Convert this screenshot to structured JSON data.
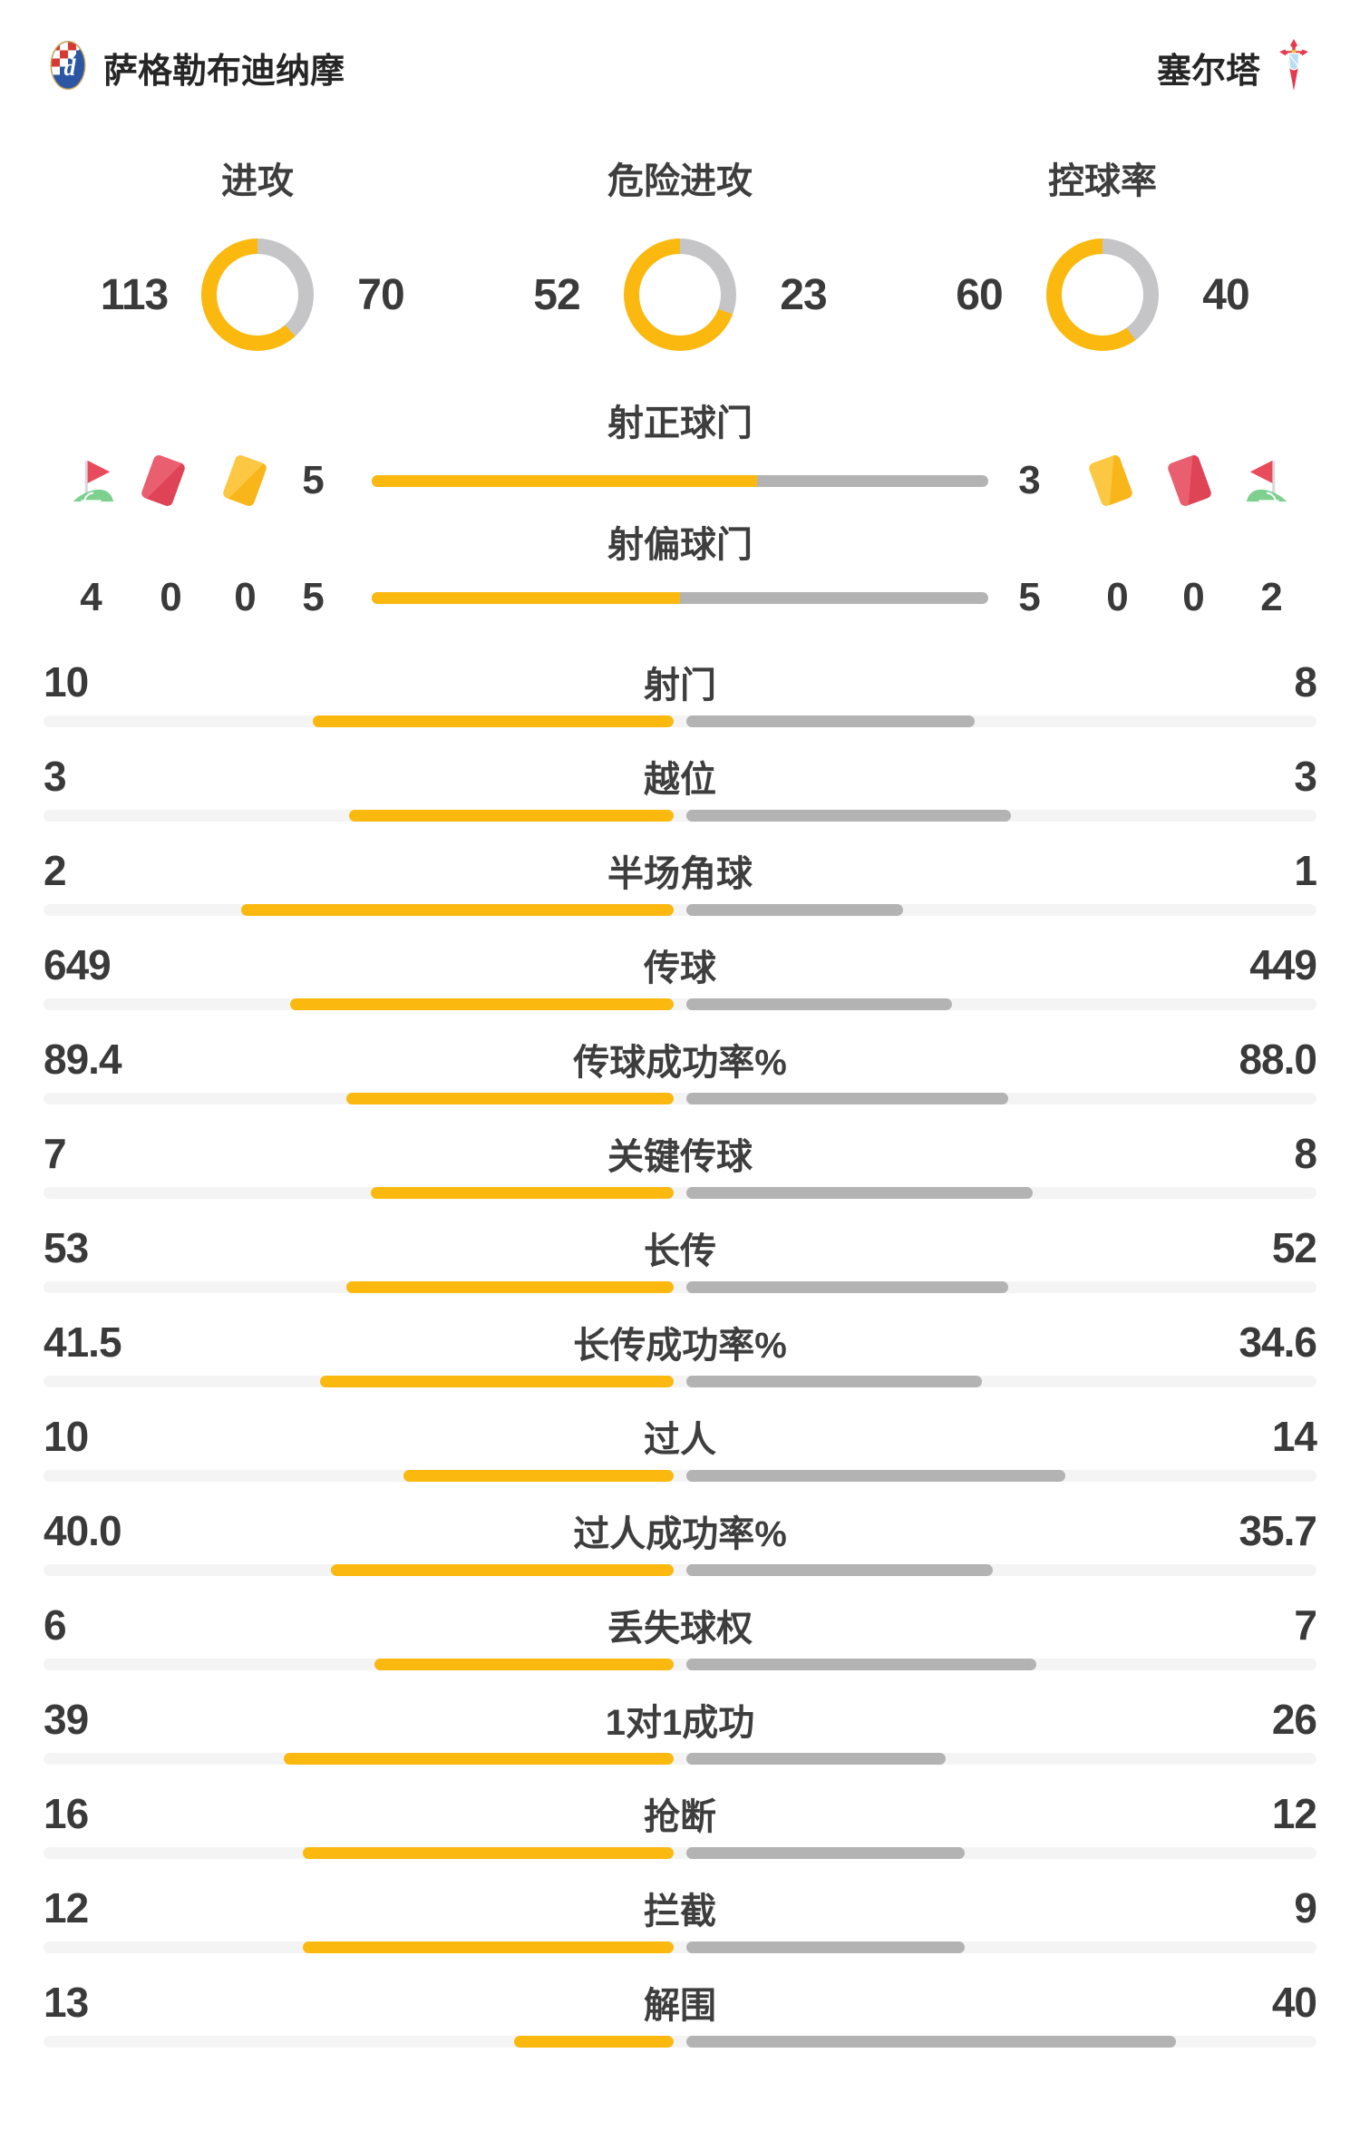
{
  "header": {
    "home_team": "萨格勒布迪纳摩",
    "away_team": "塞尔塔"
  },
  "chart_data": {
    "type": "bar",
    "subtype": "football-match-stats",
    "teams": {
      "home": "萨格勒布迪纳摩",
      "away": "塞尔塔"
    },
    "colors": {
      "home_accent": "#fbb90f",
      "away_bar": "#b3b3b3",
      "donut_away": "#c5c5c7",
      "track": "#f4f4f4"
    },
    "donuts": [
      {
        "label": "进攻",
        "home": "113",
        "away": "70"
      },
      {
        "label": "危险进攻",
        "home": "52",
        "away": "23"
      },
      {
        "label": "控球率",
        "home": "60",
        "away": "40"
      }
    ],
    "shot_rows": [
      {
        "label": "射正球门",
        "home": "5",
        "away": "3"
      },
      {
        "label": "射偏球门",
        "home": "5",
        "away": "5"
      }
    ],
    "discipline": {
      "home": {
        "corners": "4",
        "red_cards": "0",
        "yellow_cards": "0"
      },
      "away": {
        "yellow_cards": "0",
        "red_cards": "0",
        "corners": "2"
      }
    },
    "stats": [
      {
        "label": "射门",
        "home": "10",
        "away": "8"
      },
      {
        "label": "越位",
        "home": "3",
        "away": "3"
      },
      {
        "label": "半场角球",
        "home": "2",
        "away": "1"
      },
      {
        "label": "传球",
        "home": "649",
        "away": "449"
      },
      {
        "label": "传球成功率%",
        "home": "89.4",
        "away": "88.0"
      },
      {
        "label": "关键传球",
        "home": "7",
        "away": "8"
      },
      {
        "label": "长传",
        "home": "53",
        "away": "52"
      },
      {
        "label": "长传成功率%",
        "home": "41.5",
        "away": "34.6"
      },
      {
        "label": "过人",
        "home": "10",
        "away": "14"
      },
      {
        "label": "过人成功率%",
        "home": "40.0",
        "away": "35.7"
      },
      {
        "label": "丢失球权",
        "home": "6",
        "away": "7"
      },
      {
        "label": "1对1成功",
        "home": "39",
        "away": "26"
      },
      {
        "label": "抢断",
        "home": "16",
        "away": "12"
      },
      {
        "label": "拦截",
        "home": "12",
        "away": "9"
      },
      {
        "label": "解围",
        "home": "13",
        "away": "40"
      }
    ]
  }
}
